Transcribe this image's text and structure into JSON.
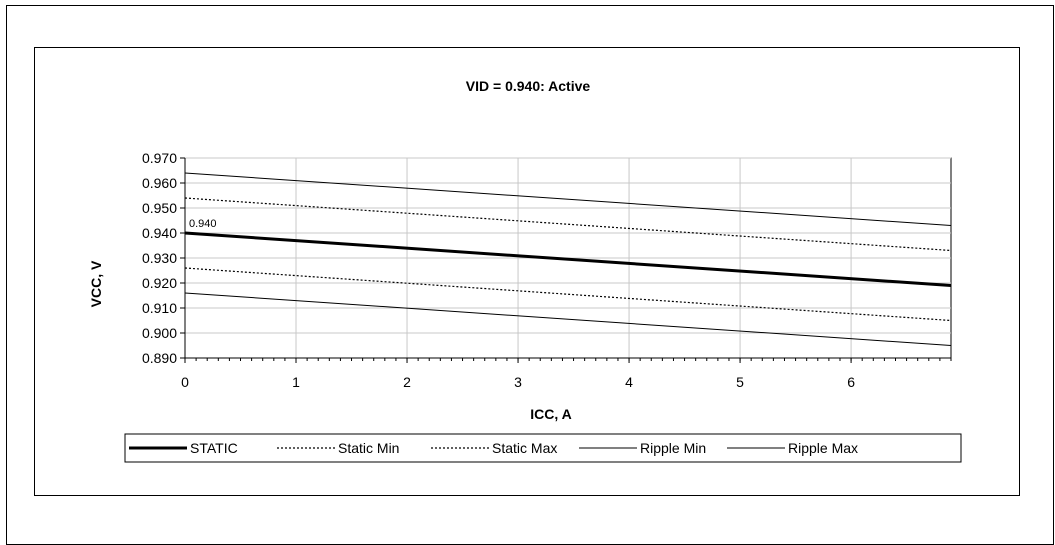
{
  "chart_data": {
    "type": "line",
    "title": "VID = 0.940: Active",
    "xlabel": "ICC, A",
    "ylabel": "VCC, V",
    "xlim": [
      0,
      6.9
    ],
    "ylim": [
      0.89,
      0.97
    ],
    "xticks": [
      "0",
      "1",
      "2",
      "3",
      "4",
      "5",
      "6"
    ],
    "yticks": [
      "0.890",
      "0.900",
      "0.910",
      "0.920",
      "0.930",
      "0.940",
      "0.950",
      "0.960",
      "0.970"
    ],
    "grid": true,
    "legend_position": "bottom",
    "annotation": "0.940",
    "series": [
      {
        "name": "STATIC",
        "style": "thick-solid",
        "x": [
          0,
          6.9
        ],
        "y": [
          0.94,
          0.919
        ]
      },
      {
        "name": "Static Min",
        "style": "dotted",
        "x": [
          0,
          6.9
        ],
        "y": [
          0.926,
          0.905
        ]
      },
      {
        "name": "Static Max",
        "style": "dotted",
        "x": [
          0,
          6.9
        ],
        "y": [
          0.954,
          0.933
        ]
      },
      {
        "name": "Ripple Min",
        "style": "thin-solid",
        "x": [
          0,
          6.9
        ],
        "y": [
          0.916,
          0.895
        ]
      },
      {
        "name": "Ripple Max",
        "style": "thin-solid",
        "x": [
          0,
          6.9
        ],
        "y": [
          0.964,
          0.943
        ]
      }
    ]
  }
}
